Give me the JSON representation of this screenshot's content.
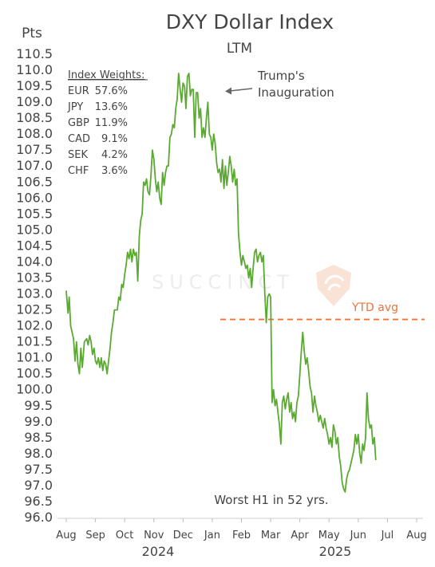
{
  "chart_data": {
    "type": "line",
    "title": "DXY Dollar Index",
    "subtitle": "LTM",
    "unit": "Pts",
    "ylim": [
      96.0,
      110.5
    ],
    "y_ticks": [
      "110.5",
      "110.0",
      "109.5",
      "109.0",
      "108.5",
      "108.0",
      "107.5",
      "107.0",
      "106.5",
      "106.0",
      "105.5",
      "105.0",
      "104.5",
      "104.0",
      "103.5",
      "103.0",
      "102.5",
      "102.0",
      "101.5",
      "101.0",
      "100.5",
      "100.0",
      "99.5",
      "99.0",
      "98.5",
      "98.0",
      "97.5",
      "97.0",
      "96.5",
      "96.0"
    ],
    "x_tick_labels": [
      "Aug",
      "Sep",
      "Oct",
      "Nov",
      "Dec",
      "Jan",
      "Feb",
      "Mar",
      "Apr",
      "May",
      "Jun",
      "Jul",
      "Aug"
    ],
    "years": [
      "2024",
      "2025"
    ],
    "series": [
      {
        "color": "#5aaa32",
        "points": [
          [
            0.0,
            103.1
          ],
          [
            0.06,
            102.4
          ],
          [
            0.1,
            102.9
          ],
          [
            0.15,
            102.0
          ],
          [
            0.25,
            101.6
          ],
          [
            0.3,
            100.9
          ],
          [
            0.35,
            101.5
          ],
          [
            0.4,
            100.8
          ],
          [
            0.45,
            100.5
          ],
          [
            0.5,
            101.3
          ],
          [
            0.55,
            100.7
          ],
          [
            0.62,
            101.5
          ],
          [
            0.7,
            101.6
          ],
          [
            0.75,
            101.4
          ],
          [
            0.8,
            101.7
          ],
          [
            0.85,
            101.5
          ],
          [
            0.9,
            101.1
          ],
          [
            0.95,
            101.3
          ],
          [
            1.0,
            100.9
          ],
          [
            1.05,
            100.8
          ],
          [
            1.1,
            101.0
          ],
          [
            1.15,
            100.7
          ],
          [
            1.2,
            101.0
          ],
          [
            1.25,
            100.6
          ],
          [
            1.3,
            100.9
          ],
          [
            1.35,
            100.8
          ],
          [
            1.4,
            100.5
          ],
          [
            1.45,
            100.9
          ],
          [
            1.5,
            101.3
          ],
          [
            1.55,
            101.8
          ],
          [
            1.6,
            102.1
          ],
          [
            1.65,
            102.5
          ],
          [
            1.75,
            102.5
          ],
          [
            1.8,
            102.9
          ],
          [
            1.85,
            102.8
          ],
          [
            1.9,
            103.3
          ],
          [
            1.95,
            103.2
          ],
          [
            2.0,
            103.6
          ],
          [
            2.05,
            103.9
          ],
          [
            2.1,
            104.3
          ],
          [
            2.15,
            104.1
          ],
          [
            2.2,
            104.4
          ],
          [
            2.25,
            104.0
          ],
          [
            2.3,
            104.4
          ],
          [
            2.35,
            104.2
          ],
          [
            2.4,
            104.3
          ],
          [
            2.45,
            103.4
          ],
          [
            2.5,
            104.8
          ],
          [
            2.55,
            105.3
          ],
          [
            2.6,
            105.5
          ],
          [
            2.65,
            106.5
          ],
          [
            2.7,
            106.4
          ],
          [
            2.75,
            106.6
          ],
          [
            2.8,
            106.2
          ],
          [
            2.85,
            106.1
          ],
          [
            2.9,
            106.7
          ],
          [
            2.95,
            107.5
          ],
          [
            3.0,
            107.2
          ],
          [
            3.05,
            106.6
          ],
          [
            3.1,
            106.2
          ],
          [
            3.15,
            106.5
          ],
          [
            3.2,
            106.0
          ],
          [
            3.25,
            105.8
          ],
          [
            3.3,
            106.8
          ],
          [
            3.35,
            106.4
          ],
          [
            3.4,
            106.8
          ],
          [
            3.45,
            107.0
          ],
          [
            3.5,
            107.0
          ],
          [
            3.55,
            107.9
          ],
          [
            3.6,
            108.0
          ],
          [
            3.65,
            108.3
          ],
          [
            3.7,
            108.2
          ],
          [
            3.75,
            108.8
          ],
          [
            3.8,
            109.1
          ],
          [
            3.85,
            109.9
          ],
          [
            3.9,
            109.4
          ],
          [
            3.95,
            109.0
          ],
          [
            4.0,
            109.6
          ],
          [
            4.05,
            109.5
          ],
          [
            4.1,
            108.8
          ],
          [
            4.15,
            109.8
          ],
          [
            4.2,
            109.9
          ],
          [
            4.25,
            109.2
          ],
          [
            4.3,
            109.4
          ],
          [
            4.35,
            109.4
          ],
          [
            4.4,
            107.9
          ],
          [
            4.45,
            109.3
          ],
          [
            4.5,
            109.3
          ],
          [
            4.55,
            108.5
          ],
          [
            4.6,
            108.8
          ],
          [
            4.65,
            107.9
          ],
          [
            4.7,
            108.2
          ],
          [
            4.75,
            107.9
          ],
          [
            4.8,
            108.5
          ],
          [
            4.85,
            109.0
          ],
          [
            4.9,
            108.0
          ],
          [
            4.95,
            107.9
          ],
          [
            5.0,
            107.5
          ],
          [
            5.05,
            108.0
          ],
          [
            5.1,
            107.7
          ],
          [
            5.15,
            107.1
          ],
          [
            5.2,
            106.8
          ],
          [
            5.25,
            106.9
          ],
          [
            5.3,
            106.5
          ],
          [
            5.35,
            107.2
          ],
          [
            5.4,
            106.3
          ],
          [
            5.45,
            107.0
          ],
          [
            5.5,
            106.4
          ],
          [
            5.55,
            106.8
          ],
          [
            5.6,
            107.3
          ],
          [
            5.65,
            107.0
          ],
          [
            5.7,
            106.5
          ],
          [
            5.75,
            106.9
          ],
          [
            5.8,
            106.4
          ],
          [
            5.85,
            106.6
          ],
          [
            5.9,
            104.9
          ],
          [
            5.95,
            104.3
          ],
          [
            6.0,
            103.9
          ],
          [
            6.05,
            104.2
          ],
          [
            6.1,
            104.0
          ],
          [
            6.15,
            103.8
          ],
          [
            6.2,
            103.9
          ],
          [
            6.25,
            103.5
          ],
          [
            6.3,
            103.8
          ],
          [
            6.35,
            103.2
          ],
          [
            6.4,
            103.8
          ],
          [
            6.45,
            104.3
          ],
          [
            6.5,
            104.4
          ],
          [
            6.55,
            104.0
          ],
          [
            6.6,
            104.2
          ],
          [
            6.65,
            104.3
          ],
          [
            6.7,
            104.0
          ],
          [
            6.75,
            104.2
          ],
          [
            6.8,
            103.0
          ],
          [
            6.85,
            102.1
          ],
          [
            6.9,
            102.9
          ],
          [
            6.95,
            103.0
          ],
          [
            7.0,
            102.9
          ],
          [
            7.05,
            99.6
          ],
          [
            7.1,
            100.0
          ],
          [
            7.15,
            99.5
          ],
          [
            7.2,
            99.7
          ],
          [
            7.25,
            99.3
          ],
          [
            7.3,
            98.9
          ],
          [
            7.35,
            98.3
          ],
          [
            7.4,
            99.6
          ],
          [
            7.45,
            99.8
          ],
          [
            7.5,
            99.4
          ],
          [
            7.55,
            99.7
          ],
          [
            7.6,
            99.9
          ],
          [
            7.65,
            99.3
          ],
          [
            7.7,
            99.6
          ],
          [
            7.75,
            99.1
          ],
          [
            7.8,
            99.3
          ],
          [
            7.85,
            99.0
          ],
          [
            7.9,
            99.6
          ],
          [
            7.95,
            99.8
          ],
          [
            8.0,
            100.5
          ],
          [
            8.05,
            101.2
          ],
          [
            8.1,
            101.8
          ],
          [
            8.15,
            101.2
          ],
          [
            8.2,
            100.8
          ],
          [
            8.25,
            101.0
          ],
          [
            8.3,
            100.6
          ],
          [
            8.35,
            100.1
          ],
          [
            8.4,
            99.9
          ],
          [
            8.45,
            99.3
          ],
          [
            8.5,
            99.8
          ],
          [
            8.55,
            99.5
          ],
          [
            8.6,
            99.3
          ],
          [
            8.65,
            99.0
          ],
          [
            8.7,
            99.2
          ],
          [
            8.75,
            99.0
          ],
          [
            8.8,
            98.8
          ],
          [
            8.85,
            99.1
          ],
          [
            8.9,
            98.8
          ],
          [
            8.95,
            98.6
          ],
          [
            9.0,
            98.3
          ],
          [
            9.05,
            98.5
          ],
          [
            9.1,
            98.2
          ],
          [
            9.15,
            98.9
          ],
          [
            9.2,
            98.7
          ],
          [
            9.25,
            98.3
          ],
          [
            9.3,
            98.5
          ],
          [
            9.35,
            97.9
          ],
          [
            9.4,
            97.6
          ],
          [
            9.45,
            97.1
          ],
          [
            9.5,
            96.9
          ],
          [
            9.55,
            96.8
          ],
          [
            9.6,
            97.2
          ],
          [
            9.65,
            97.4
          ],
          [
            9.7,
            97.5
          ],
          [
            9.75,
            97.7
          ],
          [
            9.8,
            97.9
          ],
          [
            9.85,
            98.1
          ],
          [
            9.9,
            98.6
          ],
          [
            9.95,
            98.3
          ],
          [
            10.0,
            98.6
          ],
          [
            10.05,
            98.0
          ],
          [
            10.1,
            97.7
          ],
          [
            10.15,
            98.3
          ],
          [
            10.2,
            98.1
          ],
          [
            10.25,
            98.5
          ],
          [
            10.3,
            99.9
          ],
          [
            10.35,
            99.1
          ],
          [
            10.4,
            98.8
          ],
          [
            10.45,
            98.9
          ],
          [
            10.5,
            98.3
          ],
          [
            10.55,
            98.5
          ],
          [
            10.6,
            97.8
          ]
        ]
      }
    ],
    "reference_line": {
      "label": "YTD avg",
      "value": 102.2,
      "color": "#e8743b"
    },
    "annotations": {
      "trump": "Trump's\nInauguration",
      "worst": "Worst H1 in 52 yrs."
    },
    "index_weights": {
      "heading": "Index Weights:",
      "items": [
        {
          "name": "EUR",
          "weight": "57.6%"
        },
        {
          "name": "JPY",
          "weight": "13.6%"
        },
        {
          "name": "GBP",
          "weight": "11.9%"
        },
        {
          "name": "CAD",
          "weight": "9.1%"
        },
        {
          "name": "SEK",
          "weight": "4.2%"
        },
        {
          "name": "CHF",
          "weight": "3.6%"
        }
      ]
    },
    "watermark": "SUCCINCT",
    "grid": false
  }
}
